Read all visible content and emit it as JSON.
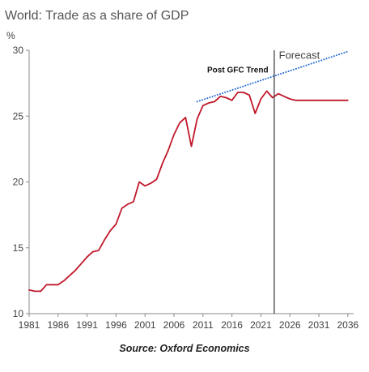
{
  "chart_data": {
    "type": "line",
    "title": "World: Trade as a share of GDP",
    "ylabel": "%",
    "ylim": [
      10,
      30
    ],
    "yticks": [
      10,
      15,
      20,
      25,
      30
    ],
    "xlim": [
      1981,
      2037
    ],
    "xticks": [
      1981,
      1986,
      1991,
      1996,
      2001,
      2006,
      2011,
      2016,
      2021,
      2026,
      2031,
      2036
    ],
    "grid": false,
    "series": [
      {
        "color": "#c0182a",
        "style": "solid",
        "x": [
          1981,
          1982,
          1983,
          1984,
          1985,
          1986,
          1987,
          1988,
          1989,
          1990,
          1991,
          1992,
          1993,
          1994,
          1995,
          1996,
          1997,
          1998,
          1999,
          2000,
          2001,
          2002,
          2003,
          2004,
          2005,
          2006,
          2007,
          2008,
          2009,
          2010,
          2011,
          2012,
          2013,
          2014,
          2015,
          2016,
          2017,
          2018,
          2019,
          2020,
          2021,
          2022,
          2023,
          2024,
          2025,
          2026,
          2027,
          2028,
          2029,
          2030,
          2031,
          2032,
          2033,
          2034,
          2035,
          2036
        ],
        "values": [
          11.8,
          11.7,
          11.7,
          12.2,
          12.2,
          12.2,
          12.5,
          12.9,
          13.3,
          13.8,
          14.3,
          14.7,
          14.8,
          15.6,
          16.3,
          16.8,
          18.0,
          18.3,
          18.5,
          20.0,
          19.7,
          19.9,
          20.2,
          21.4,
          22.4,
          23.6,
          24.5,
          24.9,
          22.7,
          24.8,
          25.8,
          26.0,
          26.1,
          26.5,
          26.4,
          26.2,
          26.8,
          26.8,
          26.6,
          25.2,
          26.3,
          26.9,
          26.4,
          26.7,
          26.5,
          26.3,
          26.2,
          26.2,
          26.2,
          26.2,
          26.2,
          26.2,
          26.2,
          26.2,
          26.2,
          26.2
        ]
      },
      {
        "name": "Post GFC Trend",
        "color": "#2e6fd6",
        "style": "dotted",
        "x": [
          2010,
          2036
        ],
        "values": [
          26.1,
          29.9
        ]
      }
    ],
    "annotations": [
      {
        "text": "Post GFC Trend",
        "x": 2017,
        "y": 28.5
      },
      {
        "text": "Forecast",
        "x": 2024.1,
        "y": 29.6
      }
    ],
    "forecast_start": 2023.3,
    "source": "Source: Oxford Economics"
  }
}
